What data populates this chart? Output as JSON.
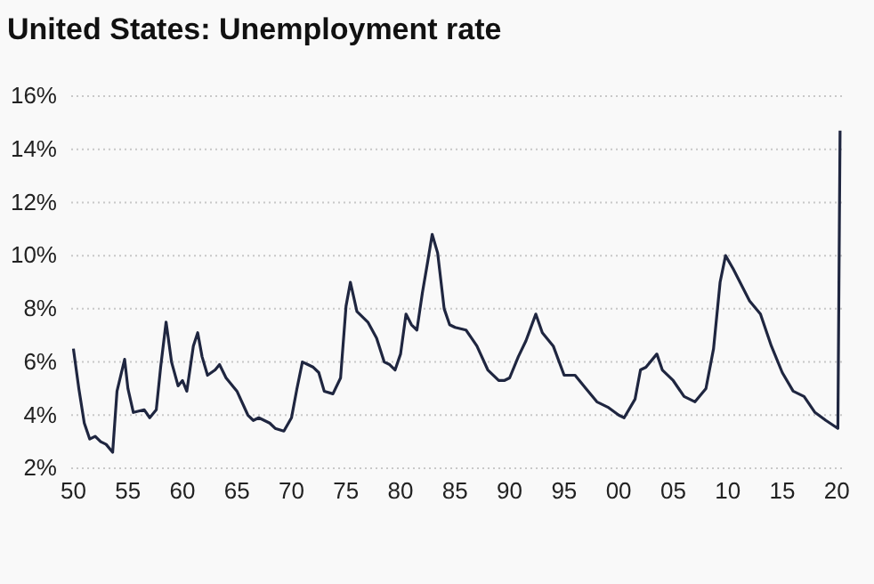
{
  "chart_data": {
    "type": "line",
    "title": "United States: Unemployment rate",
    "x": [
      1950.0,
      1950.5,
      1951.0,
      1951.5,
      1952.0,
      1952.5,
      1953.0,
      1953.6,
      1954.0,
      1954.7,
      1955.0,
      1955.5,
      1956.5,
      1957.0,
      1957.6,
      1958.0,
      1958.5,
      1959.0,
      1959.6,
      1960.0,
      1960.4,
      1961.0,
      1961.4,
      1961.8,
      1962.3,
      1963.0,
      1963.4,
      1964.0,
      1965.0,
      1966.0,
      1966.5,
      1967.0,
      1968.0,
      1968.5,
      1969.3,
      1970.0,
      1970.5,
      1971.0,
      1971.5,
      1972.0,
      1972.5,
      1973.0,
      1973.8,
      1974.5,
      1975.0,
      1975.4,
      1976.0,
      1976.5,
      1977.0,
      1977.8,
      1978.5,
      1979.0,
      1979.5,
      1980.0,
      1980.5,
      1981.0,
      1981.5,
      1982.0,
      1982.5,
      1982.9,
      1983.4,
      1984.0,
      1984.5,
      1985.0,
      1986.0,
      1986.5,
      1987.0,
      1988.0,
      1989.0,
      1989.5,
      1990.0,
      1990.8,
      1991.5,
      1992.4,
      1993.0,
      1994.0,
      1995.0,
      1996.0,
      1997.0,
      1998.0,
      1999.0,
      2000.0,
      2000.5,
      2001.5,
      2002.0,
      2002.5,
      2003.5,
      2004.0,
      2005.0,
      2006.0,
      2007.0,
      2008.0,
      2008.7,
      2009.3,
      2009.8,
      2010.5,
      2011.0,
      2012.0,
      2013.0,
      2014.0,
      2015.0,
      2016.0,
      2017.0,
      2018.0,
      2019.0,
      2020.1,
      2020.3
    ],
    "series": [
      {
        "color": "#1f2640",
        "values": [
          6.5,
          5.0,
          3.7,
          3.1,
          3.2,
          3.0,
          2.9,
          2.6,
          4.9,
          6.1,
          5.0,
          4.1,
          4.2,
          3.9,
          4.2,
          5.8,
          7.5,
          6.0,
          5.1,
          5.3,
          4.9,
          6.6,
          7.1,
          6.2,
          5.5,
          5.7,
          5.9,
          5.4,
          4.9,
          4.0,
          3.8,
          3.9,
          3.7,
          3.5,
          3.4,
          3.9,
          5.0,
          6.0,
          5.9,
          5.8,
          5.6,
          4.9,
          4.8,
          5.4,
          8.1,
          9.0,
          7.9,
          7.7,
          7.5,
          6.9,
          6.0,
          5.9,
          5.7,
          6.3,
          7.8,
          7.4,
          7.2,
          8.6,
          9.8,
          10.8,
          10.1,
          8.0,
          7.4,
          7.3,
          7.2,
          6.9,
          6.6,
          5.7,
          5.3,
          5.3,
          5.4,
          6.2,
          6.8,
          7.8,
          7.1,
          6.6,
          5.5,
          5.5,
          5.0,
          4.5,
          4.3,
          4.0,
          3.9,
          4.6,
          5.7,
          5.8,
          6.3,
          5.7,
          5.3,
          4.7,
          4.5,
          5.0,
          6.5,
          9.0,
          10.0,
          9.5,
          9.1,
          8.3,
          7.8,
          6.6,
          5.6,
          4.9,
          4.7,
          4.1,
          3.8,
          3.5,
          14.7
        ]
      }
    ],
    "xlim": [
      1949.8,
      2020.8
    ],
    "xticks": [
      {
        "value": 1950,
        "label": "50"
      },
      {
        "value": 1955,
        "label": "55"
      },
      {
        "value": 1960,
        "label": "60"
      },
      {
        "value": 1965,
        "label": "65"
      },
      {
        "value": 1970,
        "label": "70"
      },
      {
        "value": 1975,
        "label": "75"
      },
      {
        "value": 1980,
        "label": "80"
      },
      {
        "value": 1985,
        "label": "85"
      },
      {
        "value": 1990,
        "label": "90"
      },
      {
        "value": 1995,
        "label": "95"
      },
      {
        "value": 2000,
        "label": "00"
      },
      {
        "value": 2005,
        "label": "05"
      },
      {
        "value": 2010,
        "label": "10"
      },
      {
        "value": 2015,
        "label": "15"
      },
      {
        "value": 2020,
        "label": "20"
      }
    ],
    "ylim": [
      2,
      16
    ],
    "yticks": [
      {
        "value": 2,
        "label": "2%"
      },
      {
        "value": 4,
        "label": "4%"
      },
      {
        "value": 6,
        "label": "6%"
      },
      {
        "value": 8,
        "label": "8%"
      },
      {
        "value": 10,
        "label": "10%"
      },
      {
        "value": 12,
        "label": "12%"
      },
      {
        "value": 14,
        "label": "14%"
      },
      {
        "value": 16,
        "label": "16%"
      }
    ],
    "grid": "y"
  }
}
